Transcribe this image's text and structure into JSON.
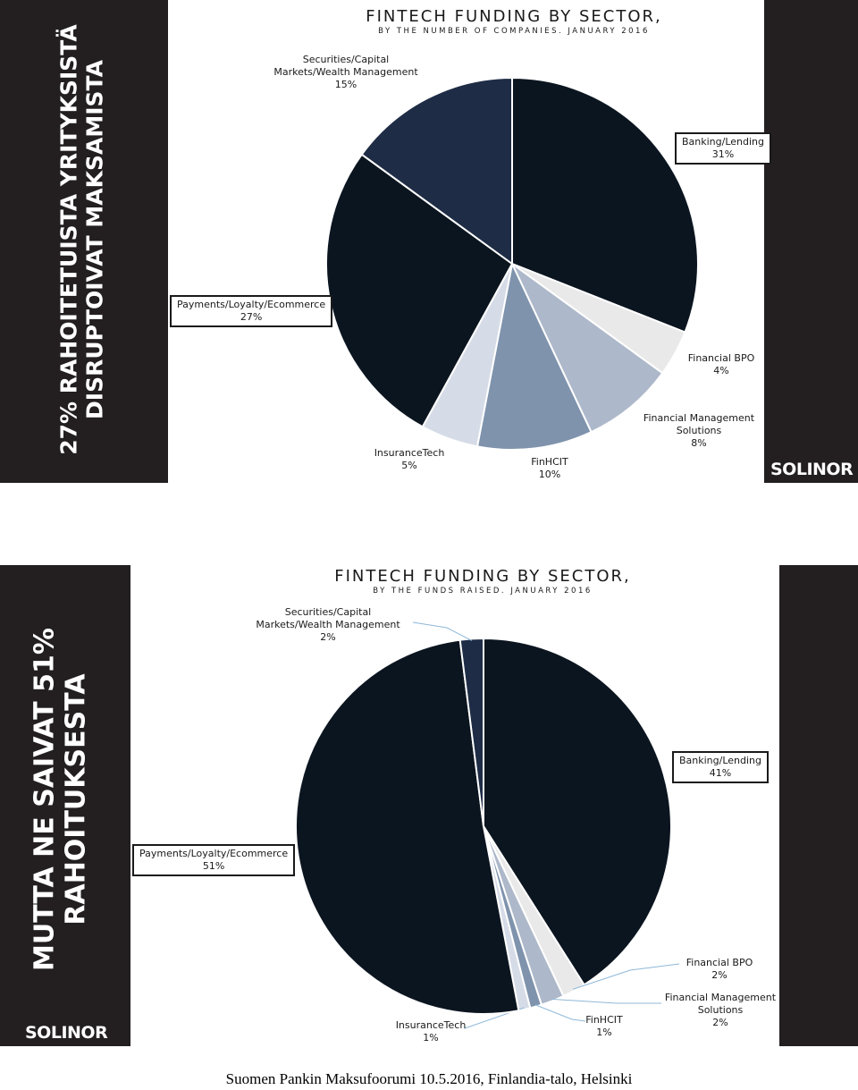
{
  "slides": [
    {
      "side_title_line1": "27% RAHOITETUISTA YRITYKSISTÄ",
      "side_title_line2": "DISRUPTOIVAT MAKSAMISTA",
      "logo": "SOLINOR"
    },
    {
      "side_title_line1": "MUTTA NE SAIVAT 51%",
      "side_title_line2": "RAHOITUKSESTA",
      "logo": "SOLINOR"
    }
  ],
  "footer": "Suomen Pankin Maksufoorumi 10.5.2016, Finlandia-talo, Helsinki",
  "chart_data": [
    {
      "type": "pie",
      "title": "FINTECH FUNDING BY SECTOR,",
      "subtitle": "BY THE NUMBER OF COMPANIES. JANUARY 2016",
      "categories": [
        "Banking/Lending",
        "Financial BPO",
        "Financial Management Solutions",
        "FinHCIT",
        "InsuranceTech",
        "Payments/Loyalty/Ecommerce",
        "Securities/Capital Markets/Wealth Management"
      ],
      "values": [
        31,
        4,
        8,
        10,
        5,
        27,
        15
      ],
      "value_labels": [
        "31%",
        "4%",
        "8%",
        "10%",
        "5%",
        "27%",
        "15%"
      ],
      "label_lines": [
        [
          "Banking/Lending"
        ],
        [
          "Financial BPO"
        ],
        [
          "Financial Management",
          "Solutions"
        ],
        [
          "FinHCIT"
        ],
        [
          "InsuranceTech"
        ],
        [
          "Payments/Loyalty/Ecommerce"
        ],
        [
          "Securities/Capital",
          "Markets/Wealth Management"
        ]
      ],
      "colors": [
        "#0b1520",
        "#e9e9e9",
        "#adb8ca",
        "#7f93ad",
        "#d6dce7",
        "#0b1520",
        "#1e2c45"
      ]
    },
    {
      "type": "pie",
      "title": "FINTECH FUNDING BY SECTOR,",
      "subtitle": "BY THE FUNDS RAISED. JANUARY 2016",
      "categories": [
        "Banking/Lending",
        "Financial BPO",
        "Financial Management Solutions",
        "FinHCIT",
        "InsuranceTech",
        "Payments/Loyalty/Ecommerce",
        "Securities/Capital Markets/Wealth Management"
      ],
      "values": [
        41,
        2,
        2,
        1,
        1,
        51,
        2
      ],
      "value_labels": [
        "41%",
        "2%",
        "2%",
        "1%",
        "1%",
        "51%",
        "2%"
      ],
      "label_lines": [
        [
          "Banking/Lending"
        ],
        [
          "Financial BPO"
        ],
        [
          "Financial Management",
          "Solutions"
        ],
        [
          "FinHCIT"
        ],
        [
          "InsuranceTech"
        ],
        [
          "Payments/Loyalty/Ecommerce"
        ],
        [
          "Securities/Capital",
          "Markets/Wealth Management"
        ]
      ],
      "colors": [
        "#0b1520",
        "#e9e9e9",
        "#adb8ca",
        "#7f93ad",
        "#d6dce7",
        "#0b1520",
        "#1e2c45"
      ]
    }
  ]
}
